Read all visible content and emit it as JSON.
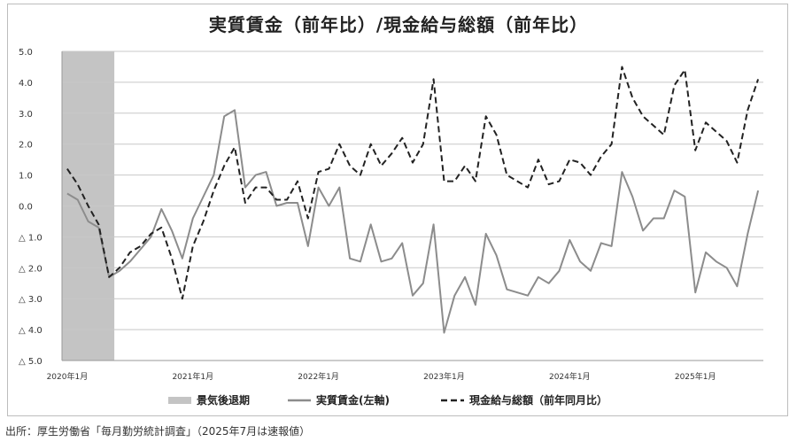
{
  "chart_data": {
    "type": "line",
    "title": "実質賃金（前年比）/現金給与総額（前年比）",
    "y_ticks": [
      "5.0",
      "4.0",
      "3.0",
      "2.0",
      "1.0",
      "0.0",
      "△ 1.0",
      "△ 2.0",
      "△ 3.0",
      "△ 4.0",
      "△ 5.0"
    ],
    "ylim": [
      -5,
      5
    ],
    "x_tick_labels": [
      "2020年1月",
      "2021年1月",
      "2022年1月",
      "2023年1月",
      "2024年1月",
      "2025年1月"
    ],
    "x_start": "2020-01",
    "x_end": "2025-07",
    "recession": {
      "label": "景気後退期",
      "start": "2020-01",
      "end": "2020-05",
      "color": "#c4c4c4"
    },
    "series": [
      {
        "name": "実質賃金(左軸)",
        "color": "#8c8c8c",
        "style": "solid",
        "values": [
          0.4,
          0.2,
          -0.5,
          -0.7,
          -2.3,
          -2.1,
          -1.8,
          -1.4,
          -1.0,
          -0.1,
          -0.8,
          -1.7,
          -0.4,
          0.3,
          1.0,
          2.9,
          3.1,
          0.6,
          1.0,
          1.1,
          0.0,
          0.1,
          0.1,
          -1.3,
          0.6,
          0.0,
          0.6,
          -1.7,
          -1.8,
          -0.6,
          -1.8,
          -1.7,
          -1.2,
          -2.9,
          -2.5,
          -0.6,
          -4.1,
          -2.9,
          -2.3,
          -3.2,
          -0.9,
          -1.6,
          -2.7,
          -2.8,
          -2.9,
          -2.3,
          -2.5,
          -2.1,
          -1.1,
          -1.8,
          -2.1,
          -1.2,
          -1.3,
          1.1,
          0.3,
          -0.8,
          -0.4,
          -0.4,
          0.5,
          0.3,
          -2.8,
          -1.5,
          -1.8,
          -2.0,
          -2.6,
          -0.9,
          0.5
        ]
      },
      {
        "name": "現金給与総額（前年同月比）",
        "color": "#222222",
        "style": "dashed",
        "values": [
          1.2,
          0.7,
          0.0,
          -0.6,
          -2.3,
          -2.0,
          -1.5,
          -1.3,
          -0.9,
          -0.7,
          -1.7,
          -3.0,
          -1.3,
          -0.5,
          0.5,
          1.3,
          1.9,
          0.1,
          0.6,
          0.6,
          0.2,
          0.2,
          0.8,
          -0.4,
          1.1,
          1.2,
          2.0,
          1.3,
          1.0,
          2.0,
          1.3,
          1.7,
          2.2,
          1.4,
          2.0,
          4.1,
          0.8,
          0.8,
          1.3,
          0.8,
          2.9,
          2.3,
          1.0,
          0.8,
          0.6,
          1.5,
          0.7,
          0.8,
          1.5,
          1.4,
          1.0,
          1.6,
          2.0,
          4.5,
          3.5,
          2.9,
          2.6,
          2.3,
          3.9,
          4.4,
          1.8,
          2.7,
          2.4,
          2.1,
          1.4,
          3.1,
          4.1
        ]
      }
    ],
    "legend": [
      "景気後退期",
      "実質賃金(左軸)",
      "現金給与総額（前年同月比）"
    ],
    "legend_position": "bottom"
  },
  "source": "出所：厚生労働省「毎月勤労統計調査」（2025年7月は速報値）"
}
